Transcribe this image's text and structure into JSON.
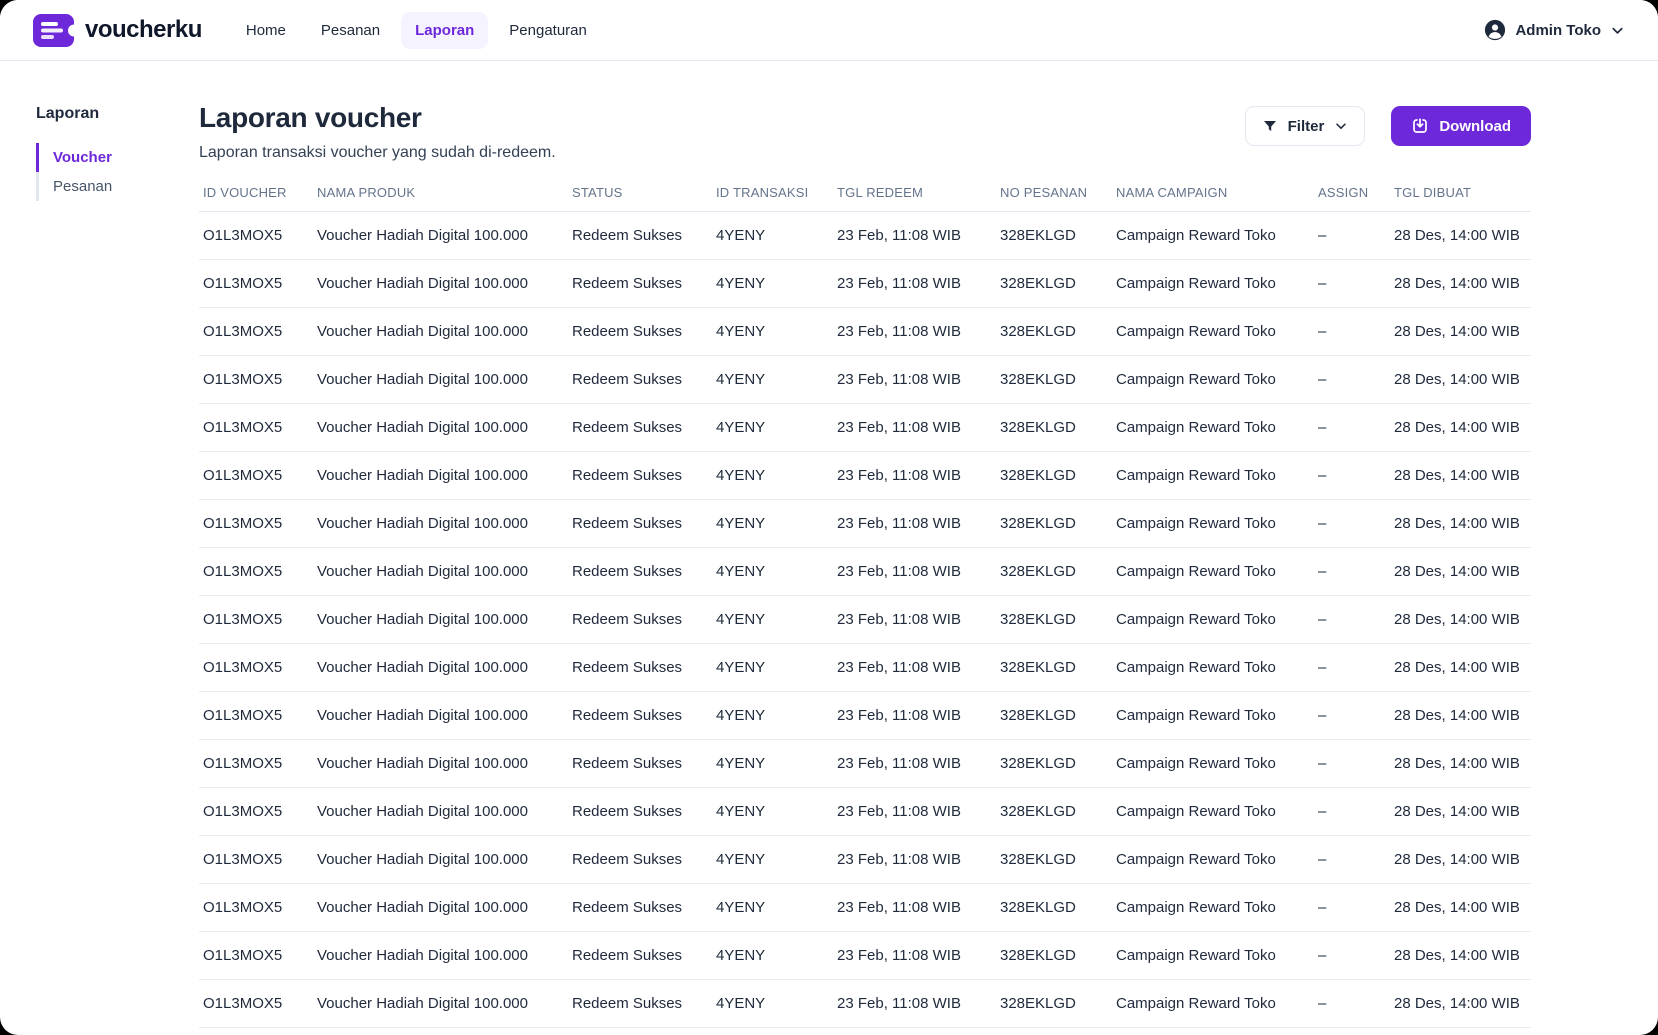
{
  "colors": {
    "accent": "#6d28d9",
    "accent_soft_bg": "#f5f3ff",
    "text_dark": "#1e293b",
    "text_muted": "#64748b",
    "border": "#e2e8f0",
    "download_button_bg": "#6d28d9",
    "download_button_text": "#ffffff"
  },
  "nav": {
    "brand": "voucherku",
    "items": [
      {
        "label": "Home",
        "active": false
      },
      {
        "label": "Pesanan",
        "active": false
      },
      {
        "label": "Laporan",
        "active": true
      },
      {
        "label": "Pengaturan",
        "active": false
      }
    ],
    "user": {
      "name": "Admin Toko"
    }
  },
  "sidebar": {
    "heading": "Laporan",
    "items": [
      {
        "label": "Voucher",
        "active": true
      },
      {
        "label": "Pesanan",
        "active": false
      }
    ]
  },
  "page": {
    "title": "Laporan voucher",
    "subtitle": "Laporan transaksi voucher yang sudah di-redeem.",
    "filter_label": "Filter",
    "download_label": "Download"
  },
  "table": {
    "columns": [
      "ID VOUCHER",
      "NAMA PRODUK",
      "STATUS",
      "ID TRANSAKSI",
      "TGL REDEEM",
      "NO PESANAN",
      "NAMA CAMPAIGN",
      "ASSIGN",
      "TGL DIBUAT"
    ],
    "rows": [
      [
        "O1L3MOX5",
        "Voucher Hadiah Digital 100.000",
        "Redeem Sukses",
        "4YENY",
        "23 Feb, 11:08 WIB",
        "328EKLGD",
        "Campaign Reward Toko",
        "–",
        "28 Des, 14:00 WIB"
      ],
      [
        "O1L3MOX5",
        "Voucher Hadiah Digital 100.000",
        "Redeem Sukses",
        "4YENY",
        "23 Feb, 11:08 WIB",
        "328EKLGD",
        "Campaign Reward Toko",
        "–",
        "28 Des, 14:00 WIB"
      ],
      [
        "O1L3MOX5",
        "Voucher Hadiah Digital 100.000",
        "Redeem Sukses",
        "4YENY",
        "23 Feb, 11:08 WIB",
        "328EKLGD",
        "Campaign Reward Toko",
        "–",
        "28 Des, 14:00 WIB"
      ],
      [
        "O1L3MOX5",
        "Voucher Hadiah Digital 100.000",
        "Redeem Sukses",
        "4YENY",
        "23 Feb, 11:08 WIB",
        "328EKLGD",
        "Campaign Reward Toko",
        "–",
        "28 Des, 14:00 WIB"
      ],
      [
        "O1L3MOX5",
        "Voucher Hadiah Digital 100.000",
        "Redeem Sukses",
        "4YENY",
        "23 Feb, 11:08 WIB",
        "328EKLGD",
        "Campaign Reward Toko",
        "–",
        "28 Des, 14:00 WIB"
      ],
      [
        "O1L3MOX5",
        "Voucher Hadiah Digital 100.000",
        "Redeem Sukses",
        "4YENY",
        "23 Feb, 11:08 WIB",
        "328EKLGD",
        "Campaign Reward Toko",
        "–",
        "28 Des, 14:00 WIB"
      ],
      [
        "O1L3MOX5",
        "Voucher Hadiah Digital 100.000",
        "Redeem Sukses",
        "4YENY",
        "23 Feb, 11:08 WIB",
        "328EKLGD",
        "Campaign Reward Toko",
        "–",
        "28 Des, 14:00 WIB"
      ],
      [
        "O1L3MOX5",
        "Voucher Hadiah Digital 100.000",
        "Redeem Sukses",
        "4YENY",
        "23 Feb, 11:08 WIB",
        "328EKLGD",
        "Campaign Reward Toko",
        "–",
        "28 Des, 14:00 WIB"
      ],
      [
        "O1L3MOX5",
        "Voucher Hadiah Digital 100.000",
        "Redeem Sukses",
        "4YENY",
        "23 Feb, 11:08 WIB",
        "328EKLGD",
        "Campaign Reward Toko",
        "–",
        "28 Des, 14:00 WIB"
      ],
      [
        "O1L3MOX5",
        "Voucher Hadiah Digital 100.000",
        "Redeem Sukses",
        "4YENY",
        "23 Feb, 11:08 WIB",
        "328EKLGD",
        "Campaign Reward Toko",
        "–",
        "28 Des, 14:00 WIB"
      ],
      [
        "O1L3MOX5",
        "Voucher Hadiah Digital 100.000",
        "Redeem Sukses",
        "4YENY",
        "23 Feb, 11:08 WIB",
        "328EKLGD",
        "Campaign Reward Toko",
        "–",
        "28 Des, 14:00 WIB"
      ],
      [
        "O1L3MOX5",
        "Voucher Hadiah Digital 100.000",
        "Redeem Sukses",
        "4YENY",
        "23 Feb, 11:08 WIB",
        "328EKLGD",
        "Campaign Reward Toko",
        "–",
        "28 Des, 14:00 WIB"
      ],
      [
        "O1L3MOX5",
        "Voucher Hadiah Digital 100.000",
        "Redeem Sukses",
        "4YENY",
        "23 Feb, 11:08 WIB",
        "328EKLGD",
        "Campaign Reward Toko",
        "–",
        "28 Des, 14:00 WIB"
      ],
      [
        "O1L3MOX5",
        "Voucher Hadiah Digital 100.000",
        "Redeem Sukses",
        "4YENY",
        "23 Feb, 11:08 WIB",
        "328EKLGD",
        "Campaign Reward Toko",
        "–",
        "28 Des, 14:00 WIB"
      ],
      [
        "O1L3MOX5",
        "Voucher Hadiah Digital 100.000",
        "Redeem Sukses",
        "4YENY",
        "23 Feb, 11:08 WIB",
        "328EKLGD",
        "Campaign Reward Toko",
        "–",
        "28 Des, 14:00 WIB"
      ],
      [
        "O1L3MOX5",
        "Voucher Hadiah Digital 100.000",
        "Redeem Sukses",
        "4YENY",
        "23 Feb, 11:08 WIB",
        "328EKLGD",
        "Campaign Reward Toko",
        "–",
        "28 Des, 14:00 WIB"
      ],
      [
        "O1L3MOX5",
        "Voucher Hadiah Digital 100.000",
        "Redeem Sukses",
        "4YENY",
        "23 Feb, 11:08 WIB",
        "328EKLGD",
        "Campaign Reward Toko",
        "–",
        "28 Des, 14:00 WIB"
      ]
    ]
  }
}
